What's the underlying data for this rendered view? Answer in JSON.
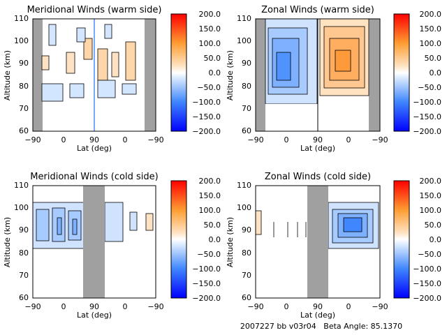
{
  "footer": {
    "text": "2007227 bb v03r04   Beta Angle: 85.1370"
  },
  "colorbar": {
    "ticks": [
      "200.0",
      "150.0",
      "100.0",
      "50.0",
      "0.0",
      "−50.0",
      "−100.0",
      "−150.0",
      "−200.0"
    ],
    "range": [
      -200,
      200
    ]
  },
  "chart_data": [
    {
      "type": "heatmap",
      "title": "Meridional Winds (warm side)",
      "xlabel": "Lat (deg)",
      "ylabel": "Altitude (km)",
      "x_ticks": [
        "−90",
        "0",
        "90",
        "0",
        "−90"
      ],
      "y_ticks": [
        "60",
        "70",
        "80",
        "90",
        "100",
        "110"
      ],
      "ylim": [
        60,
        110
      ],
      "value_range": [
        -200,
        200
      ],
      "valid_bottom_km": [
        72,
        72
      ]
    },
    {
      "type": "heatmap",
      "title": "Zonal Winds (warm side)",
      "xlabel": "Lat (deg)",
      "ylabel": "Altitude (km)",
      "x_ticks": [
        "−90",
        "0",
        "90",
        "0",
        "−90"
      ],
      "y_ticks": [
        "60",
        "70",
        "80",
        "90",
        "100",
        "110"
      ],
      "ylim": [
        60,
        110
      ],
      "value_range": [
        -200,
        200
      ],
      "valid_bottom_km": [
        72,
        76
      ]
    },
    {
      "type": "heatmap",
      "title": "Meridional Winds (cold side)",
      "xlabel": "Lat (deg)",
      "ylabel": "Altitude (km)",
      "x_ticks": [
        "−90",
        "0",
        "90",
        "0",
        "−90"
      ],
      "y_ticks": [
        "60",
        "70",
        "80",
        "90",
        "100",
        "110"
      ],
      "ylim": [
        60,
        110
      ],
      "value_range": [
        -200,
        200
      ],
      "valid_range_km": [
        83,
        103
      ]
    },
    {
      "type": "heatmap",
      "title": "Zonal Winds (cold side)",
      "xlabel": "Lat (deg)",
      "ylabel": "Altitude (km)",
      "x_ticks": [
        "−90",
        "0",
        "90",
        "0",
        "−90"
      ],
      "y_ticks": [
        "60",
        "70",
        "80",
        "90",
        "100",
        "110"
      ],
      "ylim": [
        60,
        110
      ],
      "value_range": [
        -200,
        200
      ],
      "valid_range_km": [
        83,
        103
      ]
    }
  ]
}
